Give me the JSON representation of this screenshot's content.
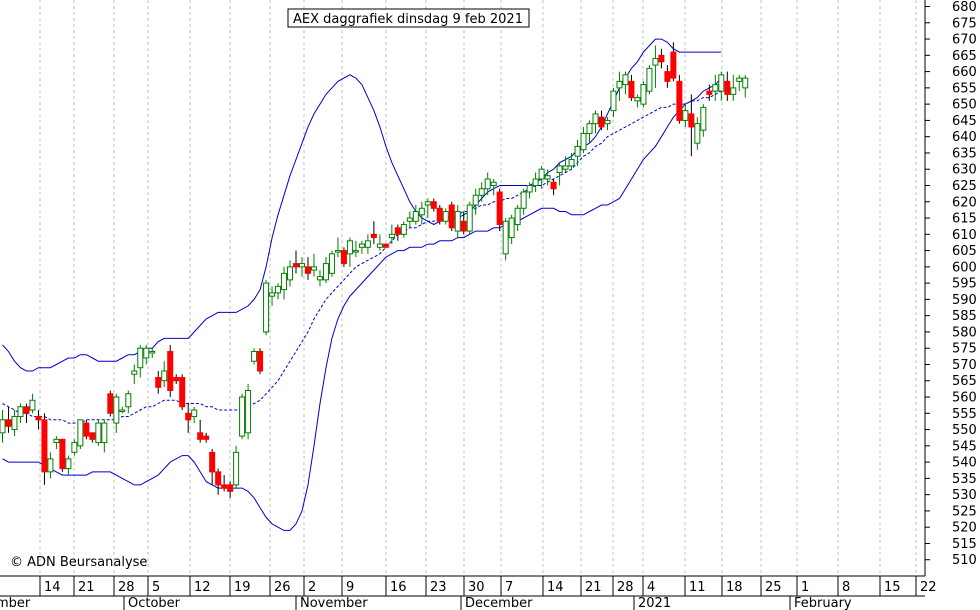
{
  "chart_data": {
    "type": "candlestick",
    "title": "AEX daggrafiek dinsdag 9 feb 2021",
    "watermark": "© ADN Beursanalyse",
    "ylim": [
      505,
      682
    ],
    "y_ticks": [
      510,
      515,
      520,
      525,
      530,
      535,
      540,
      545,
      550,
      555,
      560,
      565,
      570,
      575,
      580,
      585,
      590,
      595,
      600,
      605,
      610,
      615,
      620,
      625,
      630,
      635,
      640,
      645,
      650,
      655,
      660,
      665,
      670,
      675,
      680
    ],
    "week_ticks": [
      "14",
      "21",
      "28",
      "5",
      "12",
      "19",
      "26",
      "2",
      "9",
      "16",
      "23",
      "30",
      "7",
      "14",
      "21",
      "28",
      "4",
      "11",
      "18",
      "25",
      "1",
      "8",
      "15",
      "22"
    ],
    "months": [
      "mber",
      "October",
      "November",
      "December",
      "2021",
      "February"
    ],
    "colors": {
      "up": "#008000",
      "down": "#ff0000",
      "band": "#0000cc",
      "middle": "#0000cc",
      "grid": "#c0c0c0",
      "frame": "#000000"
    },
    "candles": [
      [
        549,
        556,
        546,
        553
      ],
      [
        553,
        557,
        549,
        551
      ],
      [
        550,
        556,
        548,
        554
      ],
      [
        554,
        558,
        552,
        557
      ],
      [
        557,
        558,
        552,
        555
      ],
      [
        556,
        561,
        555,
        559
      ],
      [
        554,
        556,
        550,
        553
      ],
      [
        553,
        555,
        533,
        537
      ],
      [
        537,
        543,
        535,
        541
      ],
      [
        546,
        548,
        544,
        547
      ],
      [
        547,
        547,
        537,
        538
      ],
      [
        538,
        542,
        536,
        541
      ],
      [
        543,
        547,
        542,
        546
      ],
      [
        545,
        553,
        544,
        553
      ],
      [
        552,
        553,
        547,
        548
      ],
      [
        549,
        549,
        546,
        547
      ],
      [
        546,
        553,
        545,
        552
      ],
      [
        546,
        553,
        543,
        552
      ],
      [
        561,
        562,
        554,
        555
      ],
      [
        552,
        561,
        549,
        560
      ],
      [
        556,
        557,
        555,
        556
      ],
      [
        557,
        562,
        555,
        561
      ],
      [
        567,
        570,
        564,
        568
      ],
      [
        569,
        576,
        566,
        575
      ],
      [
        572,
        576,
        570,
        575
      ],
      [
        574,
        575,
        572,
        574
      ],
      [
        566,
        568,
        561,
        563
      ],
      [
        565,
        571,
        563,
        568
      ],
      [
        574,
        576,
        560,
        562
      ],
      [
        566,
        567,
        564,
        565
      ],
      [
        566,
        567,
        556,
        557
      ],
      [
        555,
        558,
        549,
        553
      ],
      [
        554,
        557,
        552,
        556
      ],
      [
        549,
        553,
        546,
        547
      ],
      [
        548,
        549,
        546,
        547
      ],
      [
        543,
        544,
        533,
        537
      ],
      [
        537,
        538,
        530,
        533
      ],
      [
        533,
        536,
        531,
        532
      ],
      [
        533,
        534,
        529,
        531
      ],
      [
        533,
        545,
        532,
        543
      ],
      [
        548,
        561,
        547,
        560
      ],
      [
        549,
        564,
        547,
        562
      ],
      [
        571,
        575,
        570,
        574
      ],
      [
        574,
        575,
        567,
        568
      ],
      [
        580,
        596,
        579,
        595
      ],
      [
        591,
        594,
        588,
        592
      ],
      [
        592,
        595,
        590,
        594
      ],
      [
        593,
        600,
        590,
        598
      ],
      [
        596,
        602,
        594,
        600
      ],
      [
        601,
        605,
        598,
        600
      ],
      [
        600,
        603,
        597,
        601
      ],
      [
        600,
        603,
        596,
        598
      ],
      [
        599,
        604,
        597,
        600
      ],
      [
        596,
        599,
        594,
        597
      ],
      [
        596,
        603,
        595,
        601
      ],
      [
        598,
        605,
        597,
        604
      ],
      [
        605,
        609,
        603,
        605
      ],
      [
        605,
        606,
        600,
        601
      ],
      [
        604,
        609,
        600,
        608
      ],
      [
        605,
        608,
        603,
        605
      ],
      [
        606,
        608,
        604,
        607
      ],
      [
        606,
        610,
        604,
        608
      ],
      [
        610,
        614,
        607,
        609
      ],
      [
        606,
        610,
        605,
        607
      ],
      [
        607,
        607,
        606,
        606
      ],
      [
        609,
        613,
        607,
        610
      ],
      [
        612,
        613,
        608,
        610
      ],
      [
        610,
        614,
        609,
        613
      ],
      [
        614,
        617,
        612,
        615
      ],
      [
        614,
        619,
        613,
        617
      ],
      [
        616,
        620,
        613,
        618
      ],
      [
        619,
        621,
        615,
        620
      ],
      [
        620,
        621,
        617,
        618
      ],
      [
        618,
        619,
        613,
        614
      ],
      [
        614,
        618,
        613,
        617
      ],
      [
        619,
        620,
        611,
        612
      ],
      [
        611,
        619,
        609,
        617
      ],
      [
        614,
        617,
        610,
        611
      ],
      [
        611,
        620,
        610,
        619
      ],
      [
        619,
        624,
        616,
        622
      ],
      [
        622,
        626,
        620,
        624
      ],
      [
        624,
        629,
        622,
        627
      ],
      [
        625,
        627,
        622,
        626
      ],
      [
        623,
        624,
        611,
        613
      ],
      [
        604,
        615,
        602,
        614
      ],
      [
        609,
        616,
        607,
        615
      ],
      [
        613,
        619,
        611,
        618
      ],
      [
        618,
        624,
        616,
        623
      ],
      [
        623,
        626,
        621,
        625
      ],
      [
        625,
        629,
        623,
        627
      ],
      [
        627,
        631,
        624,
        630
      ],
      [
        627,
        630,
        625,
        628
      ],
      [
        626,
        627,
        622,
        624
      ],
      [
        629,
        632,
        625,
        631
      ],
      [
        630,
        634,
        629,
        631
      ],
      [
        631,
        635,
        630,
        633
      ],
      [
        634,
        639,
        631,
        637
      ],
      [
        636,
        643,
        635,
        641
      ],
      [
        641,
        645,
        638,
        644
      ],
      [
        644,
        648,
        641,
        647
      ],
      [
        646,
        648,
        642,
        643
      ],
      [
        644,
        646,
        642,
        645
      ],
      [
        648,
        655,
        646,
        654
      ],
      [
        655,
        660,
        651,
        657
      ],
      [
        656,
        660,
        653,
        659
      ],
      [
        657,
        659,
        651,
        652
      ],
      [
        651,
        653,
        649,
        652
      ],
      [
        650,
        657,
        649,
        656
      ],
      [
        654,
        662,
        653,
        661
      ],
      [
        662,
        668,
        655,
        664
      ],
      [
        665,
        667,
        661,
        663
      ],
      [
        660,
        662,
        655,
        657
      ],
      [
        666,
        669,
        657,
        658
      ],
      [
        657,
        659,
        644,
        645
      ],
      [
        645,
        650,
        643,
        648
      ],
      [
        647,
        653,
        634,
        643
      ],
      [
        638,
        646,
        636,
        644
      ],
      [
        642,
        650,
        640,
        649
      ],
      [
        654,
        656,
        651,
        653
      ],
      [
        654,
        659,
        651,
        656
      ],
      [
        654,
        660,
        651,
        659
      ],
      [
        657,
        660,
        651,
        653
      ],
      [
        653,
        659,
        651,
        655
      ],
      [
        657,
        659,
        654,
        658
      ],
      [
        655,
        659,
        652,
        658
      ]
    ],
    "upper_band": [
      576,
      574,
      571,
      569,
      568,
      568,
      569,
      569,
      569,
      570,
      571,
      572,
      572,
      573,
      573,
      572,
      571,
      571,
      571,
      571,
      572,
      573,
      573,
      574,
      575,
      575,
      577,
      578,
      578,
      578,
      578,
      578,
      580,
      582,
      584,
      585,
      586,
      586,
      586,
      586,
      587,
      588,
      590,
      593,
      600,
      609,
      616,
      622,
      628,
      633,
      638,
      643,
      647,
      650,
      653,
      655,
      657,
      658,
      659,
      658,
      656,
      652,
      648,
      643,
      637,
      632,
      628,
      624,
      620,
      617,
      615,
      614,
      613,
      614,
      615,
      615,
      615,
      616,
      617,
      619,
      621,
      623,
      624,
      625,
      625,
      625,
      625,
      625,
      625,
      626,
      627,
      629,
      630,
      632,
      633,
      634,
      636,
      637,
      638,
      640,
      643,
      647,
      651,
      655,
      658,
      661,
      663,
      666,
      668,
      670,
      670,
      669,
      667,
      666,
      666,
      666,
      666,
      666,
      666,
      666,
      666
    ],
    "middle_band": [
      558,
      557,
      556,
      555,
      555,
      554,
      554,
      554,
      553,
      553,
      553,
      552,
      552,
      552,
      553,
      553,
      553,
      553,
      553,
      553,
      554,
      554,
      555,
      556,
      557,
      557,
      558,
      559,
      559,
      559,
      558,
      558,
      558,
      558,
      557,
      557,
      556,
      556,
      556,
      556,
      556,
      557,
      558,
      559,
      561,
      563,
      565,
      568,
      571,
      574,
      577,
      580,
      584,
      587,
      590,
      592,
      594,
      596,
      598,
      600,
      601,
      602,
      603,
      604,
      606,
      608,
      610,
      611,
      612,
      612,
      613,
      614,
      614,
      615,
      615,
      616,
      616,
      617,
      617,
      618,
      619,
      619,
      620,
      620,
      621,
      621,
      622,
      623,
      624,
      625,
      625,
      626,
      627,
      628,
      629,
      630,
      632,
      634,
      635,
      637,
      638,
      640,
      641,
      642,
      643,
      644,
      645,
      646,
      647,
      648,
      649,
      649,
      650,
      650,
      650,
      651,
      651,
      652,
      652,
      653,
      654
    ],
    "lower_band": [
      541,
      540,
      540,
      540,
      540,
      540,
      540,
      539,
      538,
      537,
      536,
      536,
      536,
      536,
      536,
      537,
      537,
      537,
      537,
      536,
      535,
      534,
      533,
      533,
      534,
      535,
      536,
      538,
      540,
      541,
      542,
      542,
      540,
      537,
      534,
      533,
      532,
      532,
      532,
      532,
      532,
      531,
      529,
      526,
      523,
      521,
      520,
      519,
      519,
      521,
      525,
      533,
      545,
      558,
      569,
      578,
      584,
      588,
      591,
      593,
      595,
      597,
      599,
      601,
      603,
      604,
      605,
      605,
      606,
      606,
      606,
      607,
      607,
      608,
      608,
      608,
      609,
      609,
      610,
      611,
      611,
      611,
      612,
      612,
      613,
      613,
      614,
      615,
      616,
      617,
      618,
      618,
      618,
      617,
      617,
      616,
      616,
      616,
      617,
      618,
      619,
      619,
      620,
      621,
      624,
      627,
      630,
      633,
      635,
      637,
      640,
      643,
      646,
      648,
      650,
      651,
      652,
      654,
      655,
      656,
      658
    ]
  }
}
